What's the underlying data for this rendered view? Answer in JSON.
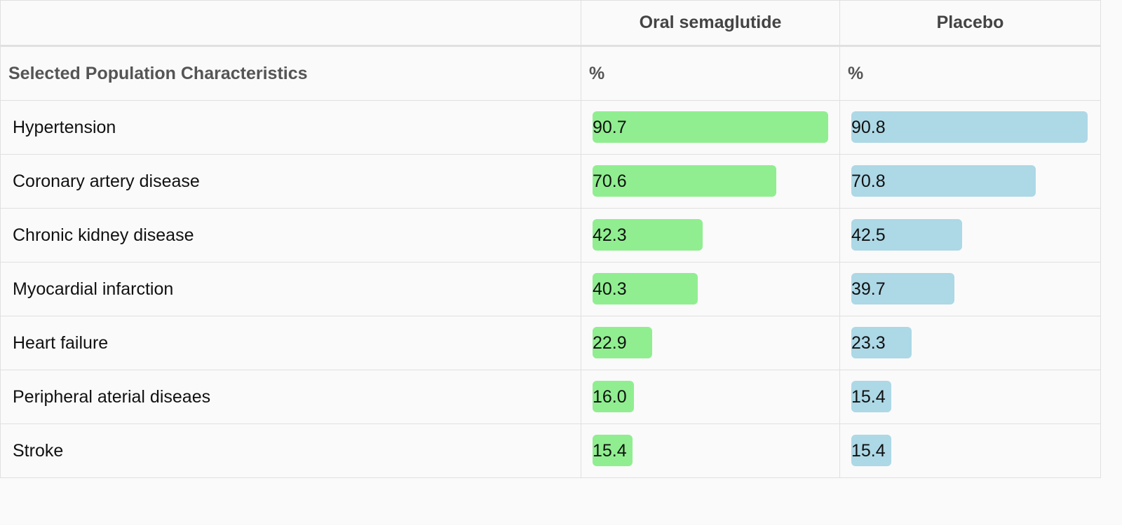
{
  "table": {
    "header": {
      "corner": "",
      "columns": [
        {
          "name": "Oral semaglutide",
          "unit": "%",
          "color": "#90ee90"
        },
        {
          "name": "Placebo",
          "unit": "%",
          "color": "#add8e6"
        }
      ]
    },
    "subheader": "Selected Population Characteristics",
    "rows": [
      {
        "label": "Hypertension",
        "values": [
          "90.7",
          "90.8"
        ]
      },
      {
        "label": "Coronary artery disease",
        "values": [
          "70.6",
          "70.8"
        ]
      },
      {
        "label": "Chronic kidney disease",
        "values": [
          "42.3",
          "42.5"
        ]
      },
      {
        "label": "Myocardial infarction",
        "values": [
          "40.3",
          "39.7"
        ]
      },
      {
        "label": "Heart failure",
        "values": [
          "22.9",
          "23.3"
        ]
      },
      {
        "label": "Peripheral aterial diseaes",
        "values": [
          "16.0",
          "15.4"
        ]
      },
      {
        "label": "Stroke",
        "values": [
          "15.4",
          "15.4"
        ]
      }
    ]
  }
}
